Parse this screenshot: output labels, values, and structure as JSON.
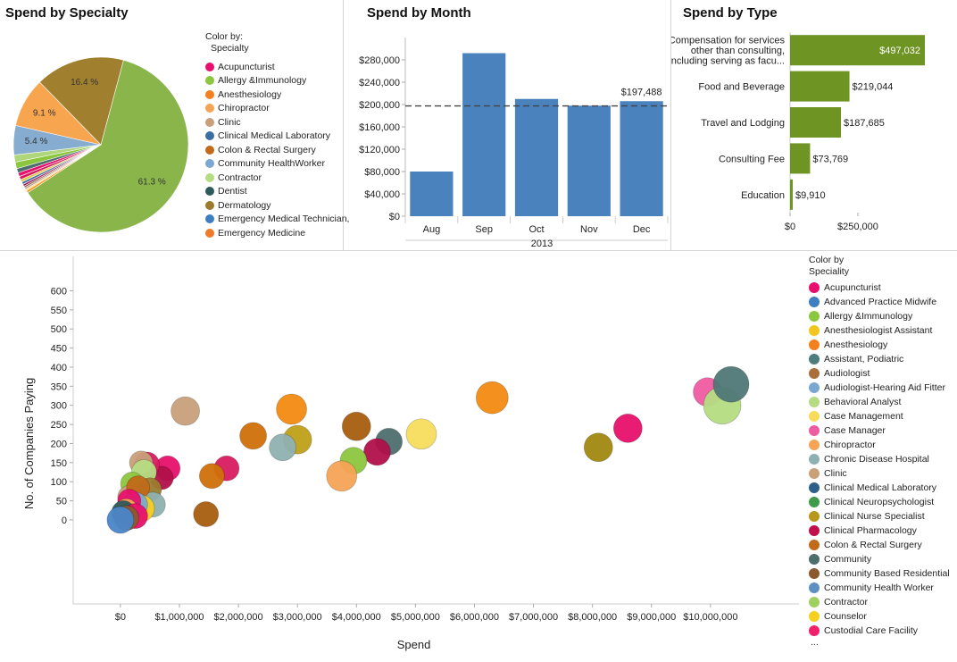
{
  "pie_panel": {
    "title": "Spend by Specialty",
    "legend_title_1": "Color by:",
    "legend_title_2": "Specialty"
  },
  "month_panel": {
    "title": "Spend by Month"
  },
  "type_panel": {
    "title": "Spend by Type"
  },
  "scatter_panel": {
    "legend_title_1": "Color by",
    "legend_title_2": "Speciality",
    "legend_more": "..."
  },
  "chart_data": [
    {
      "type": "pie",
      "title": "Spend by Specialty",
      "legend": [
        "Acupuncturist",
        "Allergy &Immunology",
        "Anesthesiology",
        "Chiropractor",
        "Clinic",
        "Clinical Medical Laboratory",
        "Colon & Rectal Surgery",
        "Community HealthWorker",
        "Contractor",
        "Dentist",
        "Dermatology",
        "Emergency Medical Technician,",
        "Emergency Medicine"
      ],
      "legend_colors": [
        "#e8106c",
        "#8cc63f",
        "#f47f1f",
        "#f5a455",
        "#c8a07a",
        "#3a6e9e",
        "#c06a1a",
        "#7ba7d0",
        "#b5dc82",
        "#2e5a5a",
        "#9c7b2e",
        "#3f7fbf",
        "#f07a28"
      ],
      "slices": [
        {
          "label": "61.3 %",
          "value": 61.3,
          "color": "#8ab54a"
        },
        {
          "label": "",
          "value": 0.4,
          "color": "#ff8a00"
        },
        {
          "label": "",
          "value": 0.3,
          "color": "#ffe08a"
        },
        {
          "label": "",
          "value": 0.35,
          "color": "#c5a088"
        },
        {
          "label": "",
          "value": 0.3,
          "color": "#7a5a3a"
        },
        {
          "label": "",
          "value": 0.4,
          "color": "#a82060"
        },
        {
          "label": "",
          "value": 0.45,
          "color": "#3a6e9e"
        },
        {
          "label": "",
          "value": 0.5,
          "color": "#e6c84a"
        },
        {
          "label": "",
          "value": 0.6,
          "color": "#d81b60"
        },
        {
          "label": "",
          "value": 0.7,
          "color": "#e8106c"
        },
        {
          "label": "",
          "value": 0.8,
          "color": "#4e6e6e"
        },
        {
          "label": "",
          "value": 1.2,
          "color": "#8cc63f"
        },
        {
          "label": "",
          "value": 1.3,
          "color": "#b0d67c"
        },
        {
          "label": "5.4 %",
          "value": 5.4,
          "color": "#86acd0"
        },
        {
          "label": "9.1 %",
          "value": 9.1,
          "color": "#f7a54f"
        },
        {
          "label": "16.4 %",
          "value": 16.4,
          "color": "#a0802e"
        }
      ]
    },
    {
      "type": "bar",
      "title": "Spend by Month",
      "categories": [
        "Aug",
        "Sep",
        "Oct",
        "Nov",
        "Dec"
      ],
      "values": [
        80000,
        292000,
        210000,
        198000,
        206000
      ],
      "group_label": "2013",
      "ylim": [
        0,
        320000
      ],
      "yticks": [
        0,
        40000,
        80000,
        120000,
        160000,
        200000,
        240000,
        280000
      ],
      "ytick_labels": [
        "$0",
        "$40,000",
        "$80,000",
        "$120,000",
        "$160,000",
        "$200,000",
        "$240,000",
        "$280,000"
      ],
      "reference_line": 197488,
      "reference_label": "$197,488",
      "color": "#4a82be"
    },
    {
      "type": "bar",
      "orientation": "horizontal",
      "title": "Spend by Type",
      "categories": [
        [
          "Compensation for services",
          "other than consulting,",
          "including serving as facu..."
        ],
        [
          "Food and Beverage"
        ],
        [
          "Travel and Lodging"
        ],
        [
          "Consulting Fee"
        ],
        [
          "Education"
        ]
      ],
      "values": [
        497032,
        219044,
        187685,
        73769,
        9910
      ],
      "value_labels": [
        "$497,032",
        "$219,044",
        "$187,685",
        "$73,769",
        "$9,910"
      ],
      "xlim": [
        0,
        520000
      ],
      "xticks": [
        0,
        250000
      ],
      "xtick_labels": [
        "$0",
        "$250,000"
      ],
      "color": "#6e9424"
    },
    {
      "type": "scatter",
      "xlabel": "Spend",
      "ylabel": "No. of Companies Paying",
      "xlim": [
        -800000,
        11500000
      ],
      "ylim": [
        -220000,
        690
      ],
      "yaxis_range": [
        -220,
        690
      ],
      "xticks": [
        0,
        1000000,
        2000000,
        3000000,
        4000000,
        5000000,
        6000000,
        7000000,
        8000000,
        9000000,
        10000000
      ],
      "xtick_labels": [
        "$0",
        "$1,000,000",
        "$2,000,000",
        "$3,000,000",
        "$4,000,000",
        "$5,000,000",
        "$6,000,000",
        "$7,000,000",
        "$8,000,000",
        "$9,000,000",
        "$10,000,000"
      ],
      "yticks": [
        0,
        50,
        100,
        150,
        200,
        250,
        300,
        350,
        400,
        450,
        500,
        550,
        600
      ],
      "ytick_labels": [
        "0",
        "50",
        "100",
        "150",
        "200",
        "250",
        "300",
        "350",
        "400",
        "450",
        "500",
        "550",
        "600"
      ],
      "legend": [
        "Acupuncturist",
        "Advanced Practice Midwife",
        "Allergy &Immunology",
        "Anesthesiologist Assistant",
        "Anesthesiology",
        "Assistant, Podiatric",
        "Audiologist",
        "Audiologist-Hearing Aid Fitter",
        "Behavioral Analyst",
        "Case Management",
        "Case Manager",
        "Chiropractor",
        "Chronic Disease Hospital",
        "Clinic",
        "Clinical Medical Laboratory",
        "Clinical Neuropsychologist",
        "Clinical Nurse Specialist",
        "Clinical Pharmacology",
        "Colon & Rectal Surgery",
        "Community",
        "Community Based Residential",
        "Community Health Worker",
        "Contractor",
        "Counselor",
        "Custodial Care Facility"
      ],
      "legend_colors": [
        "#e8106c",
        "#3f7fbf",
        "#8cc63f",
        "#f2c61f",
        "#f47f1f",
        "#4f7c7c",
        "#a8703a",
        "#7ba7d0",
        "#b5dc82",
        "#f7dc5c",
        "#ef5ba1",
        "#f5a455",
        "#8fb0b0",
        "#c8a07a",
        "#2e5e8a",
        "#3f9a4a",
        "#b8981a",
        "#c0104a",
        "#c06a1a",
        "#4e6e6e",
        "#8a5a2e",
        "#5f8fc0",
        "#a0d060",
        "#f5d020",
        "#f0206a"
      ],
      "points": [
        {
          "x": 1100000,
          "y": 285,
          "r": 16,
          "color": "#c8a07a"
        },
        {
          "x": 2900000,
          "y": 290,
          "r": 17,
          "color": "#f28a12"
        },
        {
          "x": 6300000,
          "y": 320,
          "r": 18,
          "color": "#f28a12"
        },
        {
          "x": 9950000,
          "y": 335,
          "r": 16,
          "color": "#ef5ba1"
        },
        {
          "x": 10200000,
          "y": 300,
          "r": 21,
          "color": "#b5dc82"
        },
        {
          "x": 10350000,
          "y": 355,
          "r": 20,
          "color": "#4f7777"
        },
        {
          "x": 8600000,
          "y": 240,
          "r": 16,
          "color": "#e8106c"
        },
        {
          "x": 8100000,
          "y": 190,
          "r": 16,
          "color": "#a08810"
        },
        {
          "x": 5100000,
          "y": 225,
          "r": 17,
          "color": "#f7dc5c"
        },
        {
          "x": 4000000,
          "y": 245,
          "r": 16,
          "color": "#a85e10"
        },
        {
          "x": 4550000,
          "y": 205,
          "r": 15,
          "color": "#4f6e6e"
        },
        {
          "x": 4350000,
          "y": 178,
          "r": 15,
          "color": "#b0104a"
        },
        {
          "x": 3950000,
          "y": 155,
          "r": 15,
          "color": "#8cc63f"
        },
        {
          "x": 3750000,
          "y": 115,
          "r": 17,
          "color": "#f5a455"
        },
        {
          "x": 3000000,
          "y": 210,
          "r": 16,
          "color": "#c0a01a"
        },
        {
          "x": 2750000,
          "y": 190,
          "r": 15,
          "color": "#8fb0b0"
        },
        {
          "x": 2250000,
          "y": 220,
          "r": 15,
          "color": "#d0700a"
        },
        {
          "x": 1800000,
          "y": 135,
          "r": 14,
          "color": "#d81b60"
        },
        {
          "x": 1550000,
          "y": 115,
          "r": 14,
          "color": "#d0700a"
        },
        {
          "x": 1450000,
          "y": 15,
          "r": 14,
          "color": "#a85e10"
        },
        {
          "x": 800000,
          "y": 135,
          "r": 14,
          "color": "#e8106c"
        },
        {
          "x": 700000,
          "y": 110,
          "r": 13,
          "color": "#b0104a"
        },
        {
          "x": 450000,
          "y": 145,
          "r": 14,
          "color": "#d81b60"
        },
        {
          "x": 350000,
          "y": 150,
          "r": 13,
          "color": "#c8a07a"
        },
        {
          "x": 400000,
          "y": 125,
          "r": 14,
          "color": "#b5dc82"
        },
        {
          "x": 200000,
          "y": 95,
          "r": 13,
          "color": "#8cc63f"
        },
        {
          "x": 500000,
          "y": 80,
          "r": 13,
          "color": "#9c7b2e"
        },
        {
          "x": 150000,
          "y": 60,
          "r": 13,
          "color": "#c8a07a"
        },
        {
          "x": 550000,
          "y": 40,
          "r": 14,
          "color": "#8fb0b0"
        },
        {
          "x": 300000,
          "y": 85,
          "r": 13,
          "color": "#c06a1a"
        },
        {
          "x": 350000,
          "y": 30,
          "r": 15,
          "color": "#f5d020"
        },
        {
          "x": 250000,
          "y": 40,
          "r": 14,
          "color": "#7ba7d0"
        },
        {
          "x": 150000,
          "y": 50,
          "r": 13,
          "color": "#e8106c"
        },
        {
          "x": 100000,
          "y": 25,
          "r": 13,
          "color": "#f5a455"
        },
        {
          "x": 50000,
          "y": 20,
          "r": 13,
          "color": "#2e5a5a"
        },
        {
          "x": 250000,
          "y": 10,
          "r": 14,
          "color": "#e8106c"
        },
        {
          "x": 100000,
          "y": 5,
          "r": 14,
          "color": "#8a5a2e"
        },
        {
          "x": 0,
          "y": 0,
          "r": 15,
          "color": "#4a86c8"
        }
      ]
    }
  ]
}
